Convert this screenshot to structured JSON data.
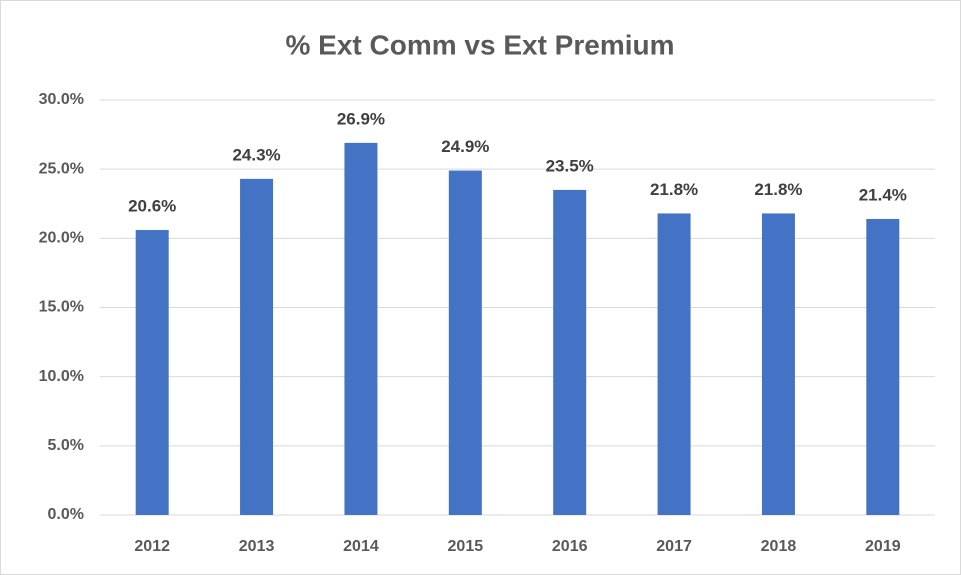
{
  "chart_data": {
    "type": "bar",
    "title": "% Ext Comm vs Ext Premium",
    "categories": [
      "2012",
      "2013",
      "2014",
      "2015",
      "2016",
      "2017",
      "2018",
      "2019"
    ],
    "values": [
      20.6,
      24.3,
      26.9,
      24.9,
      23.5,
      21.8,
      21.8,
      21.4
    ],
    "value_labels": [
      "20.6%",
      "24.3%",
      "26.9%",
      "24.9%",
      "23.5%",
      "21.8%",
      "21.8%",
      "21.4%"
    ],
    "color": "#4472c4",
    "ylim": [
      0,
      30
    ],
    "yticks": [
      {
        "value": 0,
        "label": "0.0%"
      },
      {
        "value": 5,
        "label": "5.0%"
      },
      {
        "value": 10,
        "label": "10.0%"
      },
      {
        "value": 15,
        "label": "15.0%"
      },
      {
        "value": 20,
        "label": "20.0%"
      },
      {
        "value": 25,
        "label": "25.0%"
      },
      {
        "value": 30,
        "label": "30.0%"
      }
    ],
    "grid": true
  }
}
